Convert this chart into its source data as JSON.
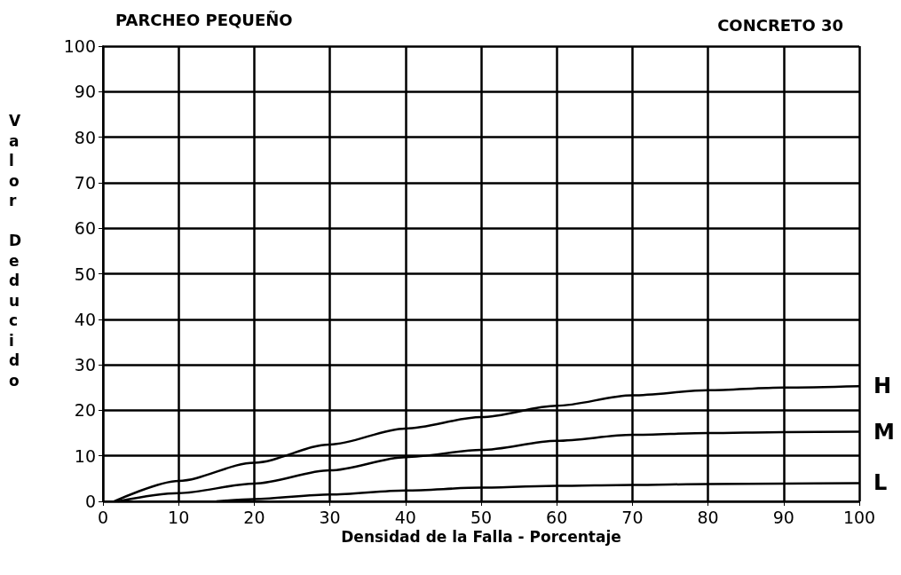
{
  "chart_data": {
    "type": "line",
    "title": "PARCHEO PEQUEÑO",
    "subtitle": "CONCRETO 30",
    "xlabel": "Densidad de la Falla - Porcentaje",
    "ylabel": "Valor Deducido",
    "xlim": [
      0,
      100
    ],
    "xticks": [
      0,
      10,
      20,
      30,
      40,
      50,
      60,
      70,
      80,
      90,
      100
    ],
    "ylim": [
      0,
      100
    ],
    "yticks": [
      0,
      10,
      20,
      30,
      40,
      50,
      60,
      70,
      80,
      90,
      100
    ],
    "grid": true,
    "legend": false,
    "marker": "none",
    "line_style": "solid",
    "series": [
      {
        "name": "H",
        "color": "#000000",
        "x": [
          1.5,
          10,
          20,
          30,
          40,
          50,
          60,
          70,
          80,
          90,
          100
        ],
        "values": [
          0,
          4.5,
          8.5,
          12.5,
          16,
          18.5,
          21,
          23.3,
          24.4,
          25,
          25.3
        ]
      },
      {
        "name": "M",
        "color": "#000000",
        "x": [
          2,
          10,
          20,
          30,
          40,
          50,
          60,
          70,
          80,
          90,
          100
        ],
        "values": [
          0,
          1.8,
          3.9,
          6.8,
          9.7,
          11.3,
          13.3,
          14.6,
          15,
          15.2,
          15.3
        ]
      },
      {
        "name": "L",
        "color": "#000000",
        "x": [
          15,
          20,
          30,
          40,
          50,
          60,
          70,
          80,
          90,
          100
        ],
        "values": [
          0,
          0.5,
          1.5,
          2.4,
          3,
          3.4,
          3.6,
          3.8,
          3.9,
          4
        ]
      }
    ]
  }
}
